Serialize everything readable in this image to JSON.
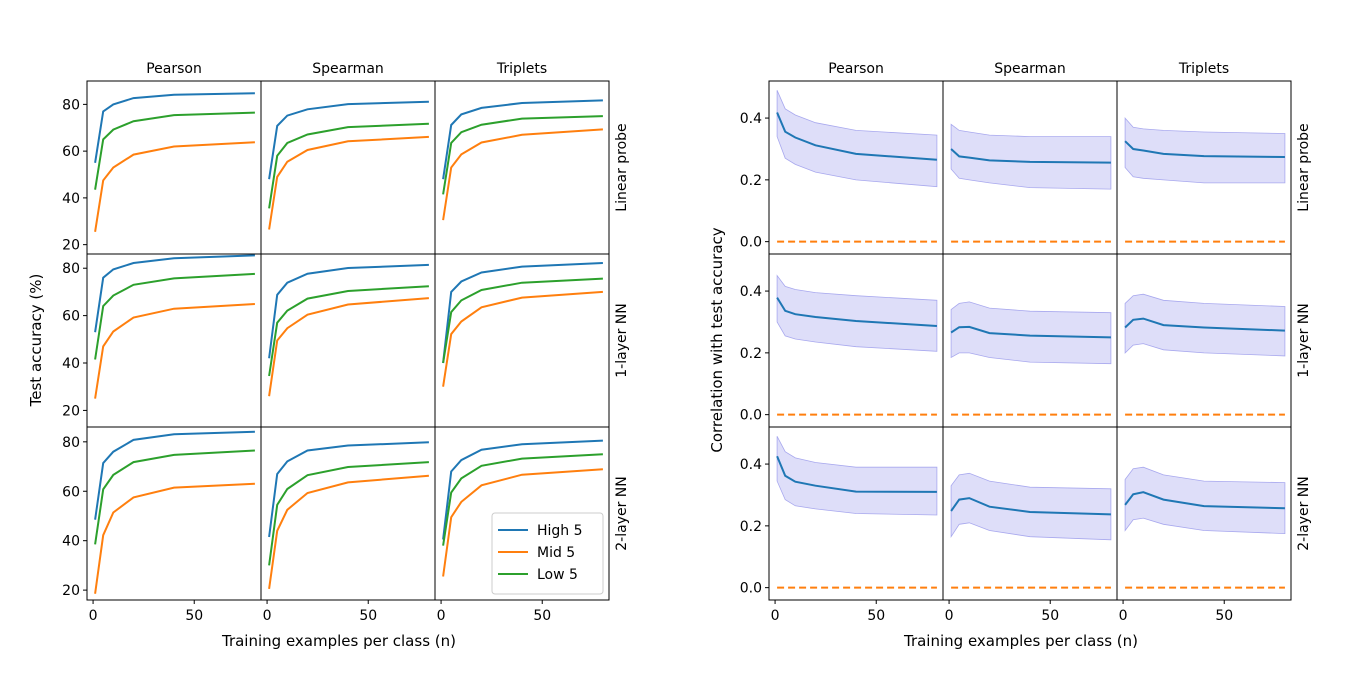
{
  "chart_data": [
    {
      "type": "line",
      "id": "left",
      "xlabel": "Training examples per class (n)",
      "ylabel": "Test accuracy (%)",
      "col_titles": [
        "Pearson",
        "Spearman",
        "Triplets"
      ],
      "row_titles": [
        "Linear probe",
        "1-layer NN",
        "2-layer NN"
      ],
      "xlim": [
        -3,
        83
      ],
      "x_ticks": [
        0,
        50
      ],
      "y_ticks": [
        20,
        40,
        60,
        80
      ],
      "ylims": [
        [
          16,
          90
        ],
        [
          13,
          86
        ],
        [
          16,
          86
        ]
      ],
      "x": [
        1,
        5,
        10,
        20,
        40,
        80
      ],
      "legend": {
        "location": "lower-right",
        "entries": [
          {
            "name": "High 5",
            "color": "#1f77b4"
          },
          {
            "name": "Mid 5",
            "color": "#ff7f0e"
          },
          {
            "name": "Low 5",
            "color": "#2ca02c"
          }
        ]
      },
      "panels": [
        [
          {
            "series": [
              {
                "name": "High 5",
                "values": [
                  55,
                  77,
                  80,
                  82.7,
                  84.1,
                  84.8
                ]
              },
              {
                "name": "Mid 5",
                "values": [
                  25.5,
                  47.5,
                  53,
                  58.5,
                  62,
                  63.8
                ]
              },
              {
                "name": "Low 5",
                "values": [
                  43.5,
                  65,
                  69.2,
                  72.8,
                  75.4,
                  76.5
                ]
              }
            ]
          },
          {
            "series": [
              {
                "name": "High 5",
                "values": [
                  48,
                  70.8,
                  75.2,
                  77.9,
                  80.1,
                  81.1
                ]
              },
              {
                "name": "Mid 5",
                "values": [
                  26.5,
                  49,
                  55.5,
                  60.5,
                  64.2,
                  66.1
                ]
              },
              {
                "name": "Low 5",
                "values": [
                  35.5,
                  58,
                  63.5,
                  67.1,
                  70.3,
                  71.7
                ]
              }
            ]
          },
          {
            "series": [
              {
                "name": "High 5",
                "values": [
                  48,
                  71.2,
                  75.7,
                  78.5,
                  80.6,
                  81.7
                ]
              },
              {
                "name": "Mid 5",
                "values": [
                  30.5,
                  53,
                  58.6,
                  63.7,
                  67,
                  69.3
                ]
              },
              {
                "name": "Low 5",
                "values": [
                  41.5,
                  63.5,
                  68.1,
                  71.3,
                  73.9,
                  75
                ]
              }
            ]
          }
        ],
        [
          {
            "series": [
              {
                "name": "High 5",
                "values": [
                  53,
                  76,
                  79.5,
                  82.2,
                  84.2,
                  85.4
                ]
              },
              {
                "name": "Mid 5",
                "values": [
                  25,
                  47,
                  53.3,
                  59.2,
                  62.9,
                  64.9
                ]
              },
              {
                "name": "Low 5",
                "values": [
                  41.5,
                  64,
                  68.5,
                  73,
                  75.7,
                  77.6
                ]
              }
            ]
          },
          {
            "series": [
              {
                "name": "High 5",
                "values": [
                  42,
                  68.8,
                  73.9,
                  77.7,
                  80.1,
                  81.4
                ]
              },
              {
                "name": "Mid 5",
                "values": [
                  26,
                  49.5,
                  54.7,
                  60.4,
                  64.7,
                  67.4
                ]
              },
              {
                "name": "Low 5",
                "values": [
                  34.5,
                  57,
                  62.1,
                  67.2,
                  70.4,
                  72.4
                ]
              }
            ]
          },
          {
            "series": [
              {
                "name": "High 5",
                "values": [
                  40,
                  70,
                  74.4,
                  78.2,
                  80.7,
                  82.2
                ]
              },
              {
                "name": "Mid 5",
                "values": [
                  30,
                  52.2,
                  57.5,
                  63.5,
                  67.6,
                  70
                ]
              },
              {
                "name": "Low 5",
                "values": [
                  40,
                  61.5,
                  66.4,
                  70.8,
                  73.9,
                  75.6
                ]
              }
            ]
          }
        ],
        [
          {
            "series": [
              {
                "name": "High 5",
                "values": [
                  48.5,
                  71.4,
                  76,
                  80.8,
                  83.1,
                  84.1
                ]
              },
              {
                "name": "Mid 5",
                "values": [
                  18.5,
                  42.2,
                  51.4,
                  57.5,
                  61.5,
                  63
                ]
              },
              {
                "name": "Low 5",
                "values": [
                  38.5,
                  60.8,
                  66.6,
                  71.8,
                  74.7,
                  76.5
                ]
              }
            ]
          },
          {
            "series": [
              {
                "name": "High 5",
                "values": [
                  41.5,
                  67,
                  72.1,
                  76.5,
                  78.5,
                  79.8
                ]
              },
              {
                "name": "Mid 5",
                "values": [
                  20.5,
                  44,
                  52.5,
                  59.3,
                  63.6,
                  66.3
                ]
              },
              {
                "name": "Low 5",
                "values": [
                  30,
                  54.5,
                  60.9,
                  66.5,
                  69.8,
                  71.8
                ]
              }
            ]
          },
          {
            "series": [
              {
                "name": "High 5",
                "values": [
                  40.5,
                  68,
                  72.6,
                  76.8,
                  79,
                  80.5
                ]
              },
              {
                "name": "Mid 5",
                "values": [
                  25.5,
                  49.5,
                  55.7,
                  62.4,
                  66.7,
                  68.9
                ]
              },
              {
                "name": "Low 5",
                "values": [
                  38,
                  59.5,
                  65.2,
                  70.3,
                  73.2,
                  75
                ]
              }
            ]
          }
        ]
      ]
    },
    {
      "type": "line",
      "id": "right",
      "xlabel": "Training examples per class (n)",
      "ylabel": "Correlation with test accuracy",
      "col_titles": [
        "Pearson",
        "Spearman",
        "Triplets"
      ],
      "row_titles": [
        "Linear probe",
        "1-layer NN",
        "2-layer NN"
      ],
      "xlim": [
        -3,
        83
      ],
      "x_ticks": [
        0,
        50
      ],
      "y_ticks": [
        "0.0",
        "0.2",
        "0.4"
      ],
      "ylim": [
        -0.04,
        0.52
      ],
      "x": [
        1,
        5,
        10,
        20,
        40,
        80
      ],
      "panels": [
        [
          {
            "mean": [
              0.418,
              0.356,
              0.337,
              0.312,
              0.284,
              0.265
            ],
            "lower": [
              0.34,
              0.27,
              0.25,
              0.225,
              0.2,
              0.178
            ],
            "upper": [
              0.49,
              0.43,
              0.41,
              0.385,
              0.36,
              0.345
            ],
            "baseline": 0.0
          },
          {
            "mean": [
              0.3,
              0.276,
              0.272,
              0.263,
              0.258,
              0.256
            ],
            "lower": [
              0.235,
              0.205,
              0.2,
              0.19,
              0.175,
              0.17
            ],
            "upper": [
              0.38,
              0.36,
              0.355,
              0.345,
              0.34,
              0.34
            ],
            "baseline": 0.0
          },
          {
            "mean": [
              0.325,
              0.3,
              0.295,
              0.284,
              0.277,
              0.274
            ],
            "lower": [
              0.24,
              0.21,
              0.205,
              0.2,
              0.19,
              0.19
            ],
            "upper": [
              0.4,
              0.37,
              0.365,
              0.36,
              0.355,
              0.35
            ]
          }
        ],
        [
          {
            "mean": [
              0.379,
              0.336,
              0.325,
              0.316,
              0.303,
              0.287
            ],
            "lower": [
              0.3,
              0.255,
              0.245,
              0.235,
              0.22,
              0.205
            ],
            "upper": [
              0.45,
              0.415,
              0.405,
              0.395,
              0.385,
              0.37
            ],
            "baseline": 0.0
          },
          {
            "mean": [
              0.266,
              0.283,
              0.284,
              0.264,
              0.256,
              0.25
            ],
            "lower": [
              0.185,
              0.2,
              0.2,
              0.185,
              0.17,
              0.165
            ],
            "upper": [
              0.34,
              0.36,
              0.365,
              0.345,
              0.335,
              0.33
            ]
          },
          {
            "mean": [
              0.282,
              0.307,
              0.311,
              0.29,
              0.282,
              0.272
            ],
            "lower": [
              0.2,
              0.225,
              0.23,
              0.21,
              0.2,
              0.19
            ],
            "upper": [
              0.36,
              0.385,
              0.39,
              0.37,
              0.36,
              0.35
            ]
          }
        ],
        [
          {
            "mean": [
              0.425,
              0.362,
              0.343,
              0.33,
              0.311,
              0.31
            ],
            "lower": [
              0.345,
              0.285,
              0.265,
              0.255,
              0.24,
              0.235
            ],
            "upper": [
              0.49,
              0.44,
              0.42,
              0.405,
              0.39,
              0.39
            ]
          },
          {
            "mean": [
              0.248,
              0.285,
              0.29,
              0.262,
              0.245,
              0.237
            ],
            "lower": [
              0.165,
              0.205,
              0.21,
              0.185,
              0.165,
              0.155
            ],
            "upper": [
              0.33,
              0.365,
              0.37,
              0.345,
              0.325,
              0.32
            ]
          },
          {
            "mean": [
              0.268,
              0.302,
              0.309,
              0.285,
              0.264,
              0.257
            ],
            "lower": [
              0.185,
              0.22,
              0.225,
              0.205,
              0.185,
              0.175
            ],
            "upper": [
              0.35,
              0.385,
              0.39,
              0.365,
              0.345,
              0.34
            ]
          }
        ]
      ],
      "colors": {
        "mean": "#1f77b4",
        "band": "#c8c8f5",
        "baseline": "#ff7f0e"
      }
    }
  ]
}
